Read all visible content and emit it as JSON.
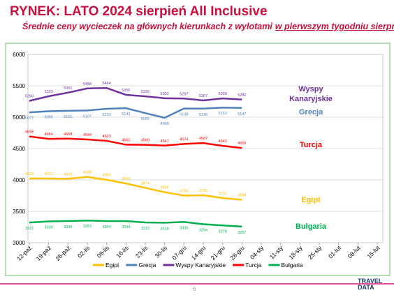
{
  "chart_data": {
    "type": "line",
    "title": "RYNEK: LATO 2024 sierpień All Inclusive",
    "subtitle": [
      "Średnie ceny wycieczek na głównych kierunkach z wylotami",
      "w pierwszym tygodniu sierpnia"
    ],
    "categories": [
      "12-paź",
      "19-paź",
      "26-paź",
      "02-lis",
      "09-lis",
      "16-lis",
      "23-lis",
      "30-lis",
      "07-gru",
      "14-gru",
      "21-gru",
      "28-gru",
      "04-sty",
      "11-sty",
      "18-sty",
      "25-sty",
      "01-lut",
      "08-lut",
      "15-lut"
    ],
    "series": [
      {
        "name": "Egipt",
        "color": "#ffc000",
        "values": [
          4023,
          4022,
          4018,
          4048,
          4003,
          3943,
          3874,
          3805,
          3750,
          3755,
          3711,
          3684,
          null,
          null,
          null,
          null,
          null,
          null,
          null
        ]
      },
      {
        "name": "Grecja",
        "color": "#4f81bd",
        "values": [
          5077,
          5095,
          5101,
          5107,
          5133,
          5143,
          5065,
          4990,
          5138,
          5136,
          5153,
          5147,
          null,
          null,
          null,
          null,
          null,
          null,
          null
        ]
      },
      {
        "name": "Wyspy Kanaryjskie",
        "color": "#7030a0",
        "values": [
          5260,
          5333,
          5391,
          5458,
          5464,
          5356,
          5332,
          5302,
          5297,
          5267,
          5299,
          5280,
          null,
          null,
          null,
          null,
          null,
          null,
          null
        ]
      },
      {
        "name": "Turcja",
        "color": "#ff0000",
        "values": [
          4693,
          4654,
          4658,
          4644,
          4623,
          4562,
          4560,
          4547,
          4574,
          4587,
          4543,
          4509,
          null,
          null,
          null,
          null,
          null,
          null,
          null
        ]
      },
      {
        "name": "Bułgaria",
        "color": "#00b050",
        "values": [
          3321,
          3339,
          3346,
          3353,
          3344,
          3344,
          3322,
          3318,
          3330,
          3294,
          3275,
          3257,
          null,
          null,
          null,
          null,
          null,
          null,
          null
        ]
      }
    ],
    "ylim": [
      3000,
      6000
    ],
    "yticks": [
      3000,
      3500,
      4000,
      4500,
      5000,
      5500,
      6000
    ],
    "grid": true,
    "legend": "bottom"
  },
  "footer": {
    "page": "6",
    "logo": [
      "TRAVEL",
      "DATA"
    ]
  }
}
